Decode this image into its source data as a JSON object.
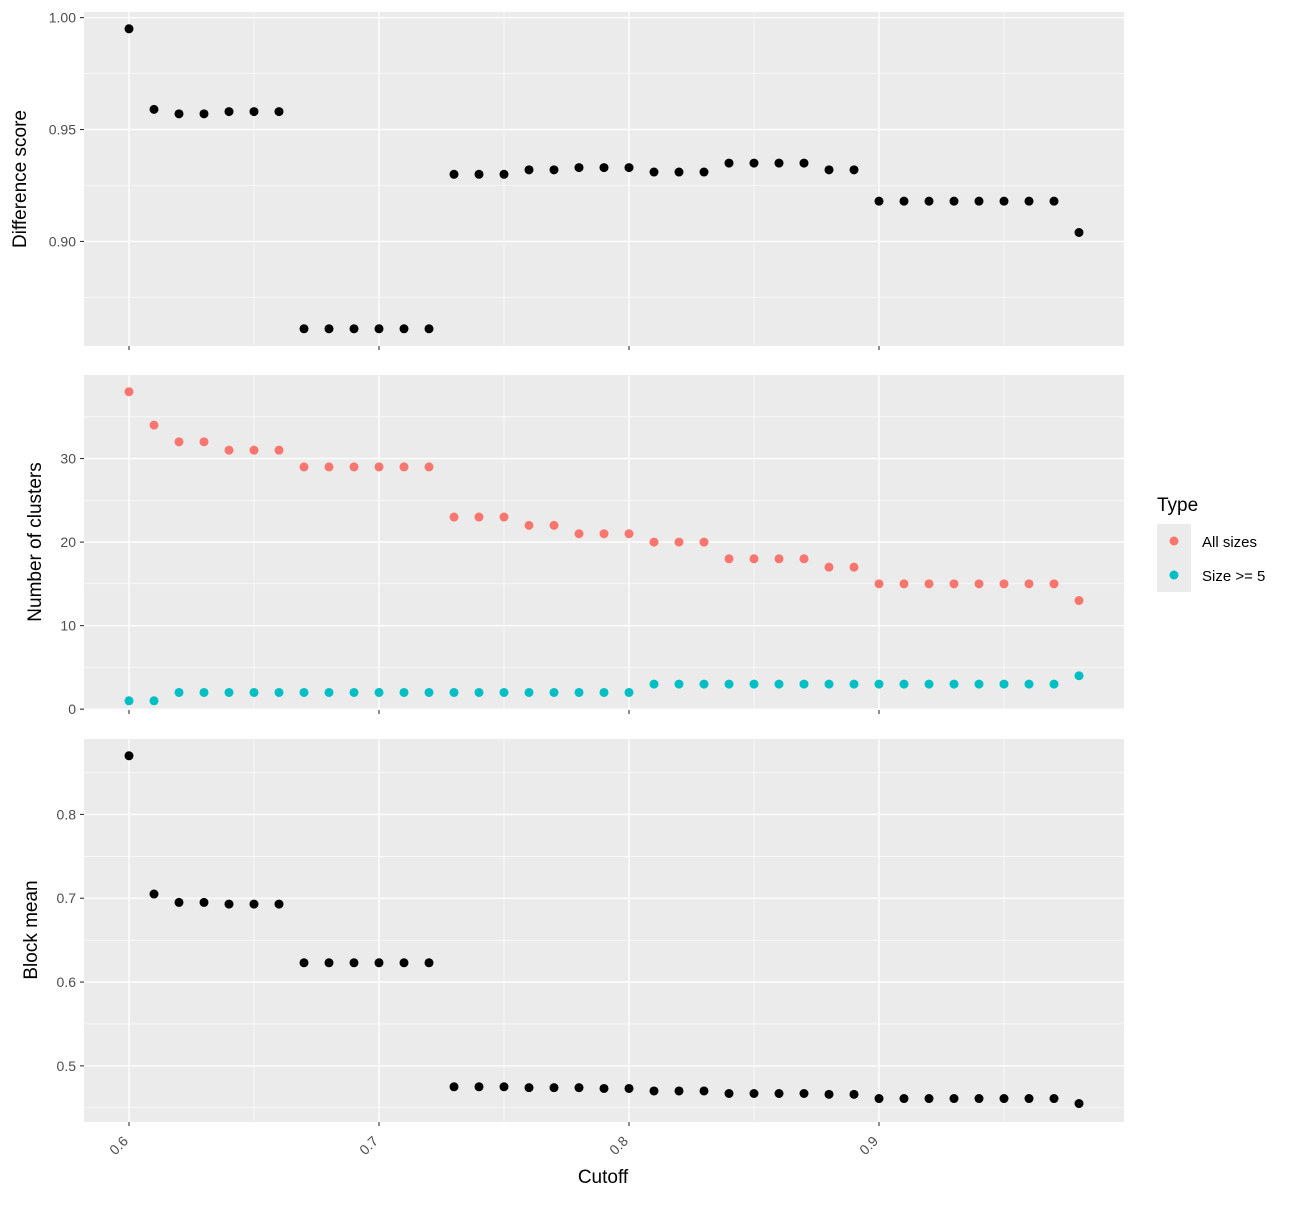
{
  "chart_data": {
    "type": "scatter",
    "xlabel": "Cutoff",
    "x_ticks": [
      "0.6",
      "0.7",
      "0.8",
      "0.9"
    ],
    "x_tick_values": [
      0.6,
      0.7,
      0.8,
      0.9
    ],
    "xlim": [
      0.582,
      0.998
    ],
    "grid": true,
    "legend": {
      "title": "Type",
      "position": "right",
      "entries": [
        {
          "label": "All sizes",
          "color": "#F8766D"
        },
        {
          "label": "Size >= 5",
          "color": "#00BFC4"
        }
      ]
    },
    "panels": [
      {
        "ylabel": "Difference score",
        "ylim": [
          0.8533,
          1.0025
        ],
        "y_ticks": [
          "0.90",
          "0.95",
          "1.00"
        ],
        "y_tick_values": [
          0.9,
          0.95,
          1.0
        ],
        "series": [
          {
            "color": "#000000",
            "x": [
              0.6,
              0.61,
              0.62,
              0.63,
              0.64,
              0.65,
              0.66,
              0.67,
              0.68,
              0.69,
              0.7,
              0.71,
              0.72,
              0.73,
              0.74,
              0.75,
              0.76,
              0.77,
              0.78,
              0.79,
              0.8,
              0.81,
              0.82,
              0.83,
              0.84,
              0.85,
              0.86,
              0.87,
              0.88,
              0.89,
              0.9,
              0.91,
              0.92,
              0.93,
              0.94,
              0.95,
              0.96,
              0.97,
              0.98
            ],
            "y": [
              0.995,
              0.959,
              0.957,
              0.957,
              0.958,
              0.958,
              0.958,
              0.861,
              0.861,
              0.861,
              0.861,
              0.861,
              0.861,
              0.93,
              0.93,
              0.93,
              0.932,
              0.932,
              0.933,
              0.933,
              0.933,
              0.931,
              0.931,
              0.931,
              0.935,
              0.935,
              0.935,
              0.935,
              0.932,
              0.932,
              0.918,
              0.918,
              0.918,
              0.918,
              0.918,
              0.918,
              0.918,
              0.918,
              0.904
            ]
          }
        ]
      },
      {
        "ylabel": "Number of clusters",
        "ylim": [
          -0.1,
          40
        ],
        "y_ticks": [
          "0",
          "10",
          "20",
          "30"
        ],
        "y_tick_values": [
          0,
          10,
          20,
          30
        ],
        "series": [
          {
            "name": "All sizes",
            "color": "#F8766D",
            "x": [
              0.6,
              0.61,
              0.62,
              0.63,
              0.64,
              0.65,
              0.66,
              0.67,
              0.68,
              0.69,
              0.7,
              0.71,
              0.72,
              0.73,
              0.74,
              0.75,
              0.76,
              0.77,
              0.78,
              0.79,
              0.8,
              0.81,
              0.82,
              0.83,
              0.84,
              0.85,
              0.86,
              0.87,
              0.88,
              0.89,
              0.9,
              0.91,
              0.92,
              0.93,
              0.94,
              0.95,
              0.96,
              0.97,
              0.98
            ],
            "y": [
              38,
              34,
              32,
              32,
              31,
              31,
              31,
              29,
              29,
              29,
              29,
              29,
              29,
              23,
              23,
              23,
              22,
              22,
              21,
              21,
              21,
              20,
              20,
              20,
              18,
              18,
              18,
              18,
              17,
              17,
              15,
              15,
              15,
              15,
              15,
              15,
              15,
              15,
              13
            ]
          },
          {
            "name": "Size >= 5",
            "color": "#00BFC4",
            "x": [
              0.6,
              0.61,
              0.62,
              0.63,
              0.64,
              0.65,
              0.66,
              0.67,
              0.68,
              0.69,
              0.7,
              0.71,
              0.72,
              0.73,
              0.74,
              0.75,
              0.76,
              0.77,
              0.78,
              0.79,
              0.8,
              0.81,
              0.82,
              0.83,
              0.84,
              0.85,
              0.86,
              0.87,
              0.88,
              0.89,
              0.9,
              0.91,
              0.92,
              0.93,
              0.94,
              0.95,
              0.96,
              0.97,
              0.98
            ],
            "y": [
              1,
              1,
              2,
              2,
              2,
              2,
              2,
              2,
              2,
              2,
              2,
              2,
              2,
              2,
              2,
              2,
              2,
              2,
              2,
              2,
              2,
              3,
              3,
              3,
              3,
              3,
              3,
              3,
              3,
              3,
              3,
              3,
              3,
              3,
              3,
              3,
              3,
              3,
              4
            ]
          }
        ]
      },
      {
        "ylabel": "Block mean",
        "ylim": [
          0.433,
          0.89
        ],
        "y_ticks": [
          "0.5",
          "0.6",
          "0.7",
          "0.8"
        ],
        "y_tick_values": [
          0.5,
          0.6,
          0.7,
          0.8
        ],
        "series": [
          {
            "color": "#000000",
            "x": [
              0.6,
              0.61,
              0.62,
              0.63,
              0.64,
              0.65,
              0.66,
              0.67,
              0.68,
              0.69,
              0.7,
              0.71,
              0.72,
              0.73,
              0.74,
              0.75,
              0.76,
              0.77,
              0.78,
              0.79,
              0.8,
              0.81,
              0.82,
              0.83,
              0.84,
              0.85,
              0.86,
              0.87,
              0.88,
              0.89,
              0.9,
              0.91,
              0.92,
              0.93,
              0.94,
              0.95,
              0.96,
              0.97,
              0.98
            ],
            "y": [
              0.87,
              0.705,
              0.695,
              0.695,
              0.693,
              0.693,
              0.693,
              0.623,
              0.623,
              0.623,
              0.623,
              0.623,
              0.623,
              0.475,
              0.475,
              0.475,
              0.474,
              0.474,
              0.474,
              0.473,
              0.473,
              0.47,
              0.47,
              0.47,
              0.467,
              0.467,
              0.467,
              0.467,
              0.466,
              0.466,
              0.461,
              0.461,
              0.461,
              0.461,
              0.461,
              0.461,
              0.461,
              0.461,
              0.455
            ]
          }
        ]
      }
    ]
  }
}
